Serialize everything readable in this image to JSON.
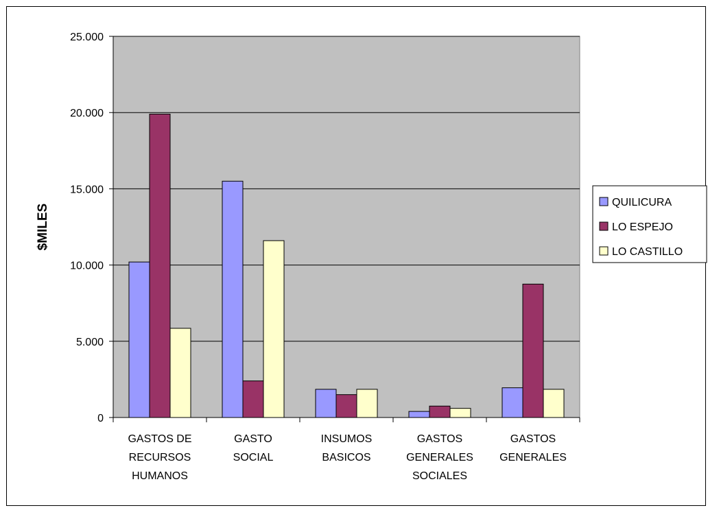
{
  "chart_data": {
    "type": "bar",
    "title": "",
    "xlabel": "",
    "ylabel": "$MILES",
    "ylim": [
      0,
      25000
    ],
    "yticks": [
      0,
      5000,
      10000,
      15000,
      20000,
      25000
    ],
    "ytick_labels": [
      "0",
      "5.000",
      "10.000",
      "15.000",
      "20.000",
      "25.000"
    ],
    "categories": [
      [
        "GASTOS DE",
        "RECURSOS",
        "HUMANOS"
      ],
      [
        "GASTO",
        "SOCIAL"
      ],
      [
        "INSUMOS",
        "BASICOS"
      ],
      [
        "GASTOS",
        "GENERALES",
        "SOCIALES"
      ],
      [
        "GASTOS",
        "GENERALES"
      ]
    ],
    "series": [
      {
        "name": "QUILICURA",
        "color": "#9999ff",
        "values": [
          10200,
          15500,
          1850,
          400,
          1950
        ]
      },
      {
        "name": "LO ESPEJO",
        "color": "#993366",
        "values": [
          19900,
          2400,
          1500,
          750,
          8750
        ]
      },
      {
        "name": "LO CASTILLO",
        "color": "#ffffcc",
        "values": [
          5850,
          11600,
          1850,
          600,
          1850
        ]
      }
    ],
    "grid": true,
    "plot_background": "#c0c0c0",
    "legend_position": "right"
  }
}
